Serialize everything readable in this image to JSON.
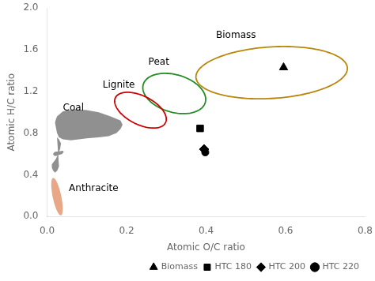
{
  "chart_data": {
    "type": "scatter",
    "xlabel": "Atomic O/C ratio",
    "ylabel": "Atomic H/C ratio",
    "xlim": [
      0.0,
      0.8
    ],
    "ylim": [
      0.0,
      2.0
    ],
    "xticks": [
      {
        "value": 0.0,
        "label": "0.0"
      },
      0.2,
      0.4,
      0.6,
      0.8
    ],
    "yticks": [
      {
        "value": 0.0,
        "label": "0.0"
      },
      0.4,
      0.8,
      1.2,
      1.6,
      {
        "value": 2.0,
        "label": "2.0"
      }
    ],
    "grid": false,
    "legend": "lower right",
    "series": [
      {
        "name": "Biomass",
        "marker": "triangle",
        "color": "#000000",
        "x": [
          0.595
        ],
        "y": [
          1.43
        ]
      },
      {
        "name": "HTC 180",
        "marker": "square",
        "color": "#000000",
        "x": [
          0.385
        ],
        "y": [
          0.845
        ]
      },
      {
        "name": "HTC 200",
        "marker": "diamond",
        "color": "#000000",
        "x": [
          0.395
        ],
        "y": [
          0.645
        ]
      },
      {
        "name": "HTC 220",
        "marker": "circle",
        "color": "#000000",
        "x": [
          0.398
        ],
        "y": [
          0.615
        ]
      }
    ],
    "areas": [
      {
        "color": "#909090",
        "x": [
          0.025,
          0.04,
          0.07,
          0.1,
          0.13,
          0.16,
          0.185,
          0.19,
          0.185,
          0.175,
          0.155,
          0.13,
          0.1,
          0.08,
          0.06,
          0.04,
          0.03,
          0.025,
          0.022,
          0.02,
          0.022,
          0.025
        ],
        "y": [
          0.96,
          1.01,
          1.03,
          1.02,
          1.0,
          0.96,
          0.92,
          0.88,
          0.84,
          0.8,
          0.77,
          0.76,
          0.75,
          0.74,
          0.73,
          0.74,
          0.76,
          0.8,
          0.86,
          0.9,
          0.93,
          0.96
        ]
      },
      {
        "color": "#909090",
        "x": [
          0.025,
          0.03,
          0.035,
          0.033,
          0.028,
          0.022,
          0.016,
          0.012,
          0.012,
          0.015,
          0.02,
          0.026,
          0.03,
          0.028,
          0.025
        ],
        "y": [
          0.76,
          0.74,
          0.7,
          0.65,
          0.6,
          0.55,
          0.52,
          0.5,
          0.47,
          0.44,
          0.42,
          0.44,
          0.48,
          0.6,
          0.76
        ]
      },
      {
        "color": "#909090",
        "x": [
          0.02,
          0.03,
          0.04,
          0.042,
          0.038,
          0.03,
          0.022,
          0.017,
          0.015,
          0.018,
          0.02
        ],
        "y": [
          0.62,
          0.625,
          0.63,
          0.62,
          0.6,
          0.59,
          0.58,
          0.585,
          0.6,
          0.615,
          0.62
        ]
      },
      {
        "color": "#E8A888",
        "cx": 0.025,
        "cy": 0.19,
        "rx": 0.011,
        "ry": 0.18,
        "angle": 3
      }
    ],
    "outlines": [
      {
        "color": "#B8860B",
        "cx": 0.565,
        "cy": 1.38,
        "rx": 0.185,
        "ry": 0.255,
        "angle": -15
      },
      {
        "color": "#228B22",
        "cx": 0.32,
        "cy": 1.18,
        "rx": 0.075,
        "ry": 0.195,
        "angle": 8
      },
      {
        "color": "#CC0000",
        "cx": 0.235,
        "cy": 1.02,
        "rx": 0.055,
        "ry": 0.175,
        "angle": 12
      }
    ],
    "annotations": [
      {
        "text": "Biomass",
        "x": 0.425,
        "y": 1.74
      },
      {
        "text": "Peat",
        "x": 0.255,
        "y": 1.48
      },
      {
        "text": "Lignite",
        "x": 0.14,
        "y": 1.26
      },
      {
        "text": "Coal",
        "x": 0.04,
        "y": 1.04
      },
      {
        "text": "Anthracite",
        "x": 0.055,
        "y": 0.27
      }
    ]
  }
}
